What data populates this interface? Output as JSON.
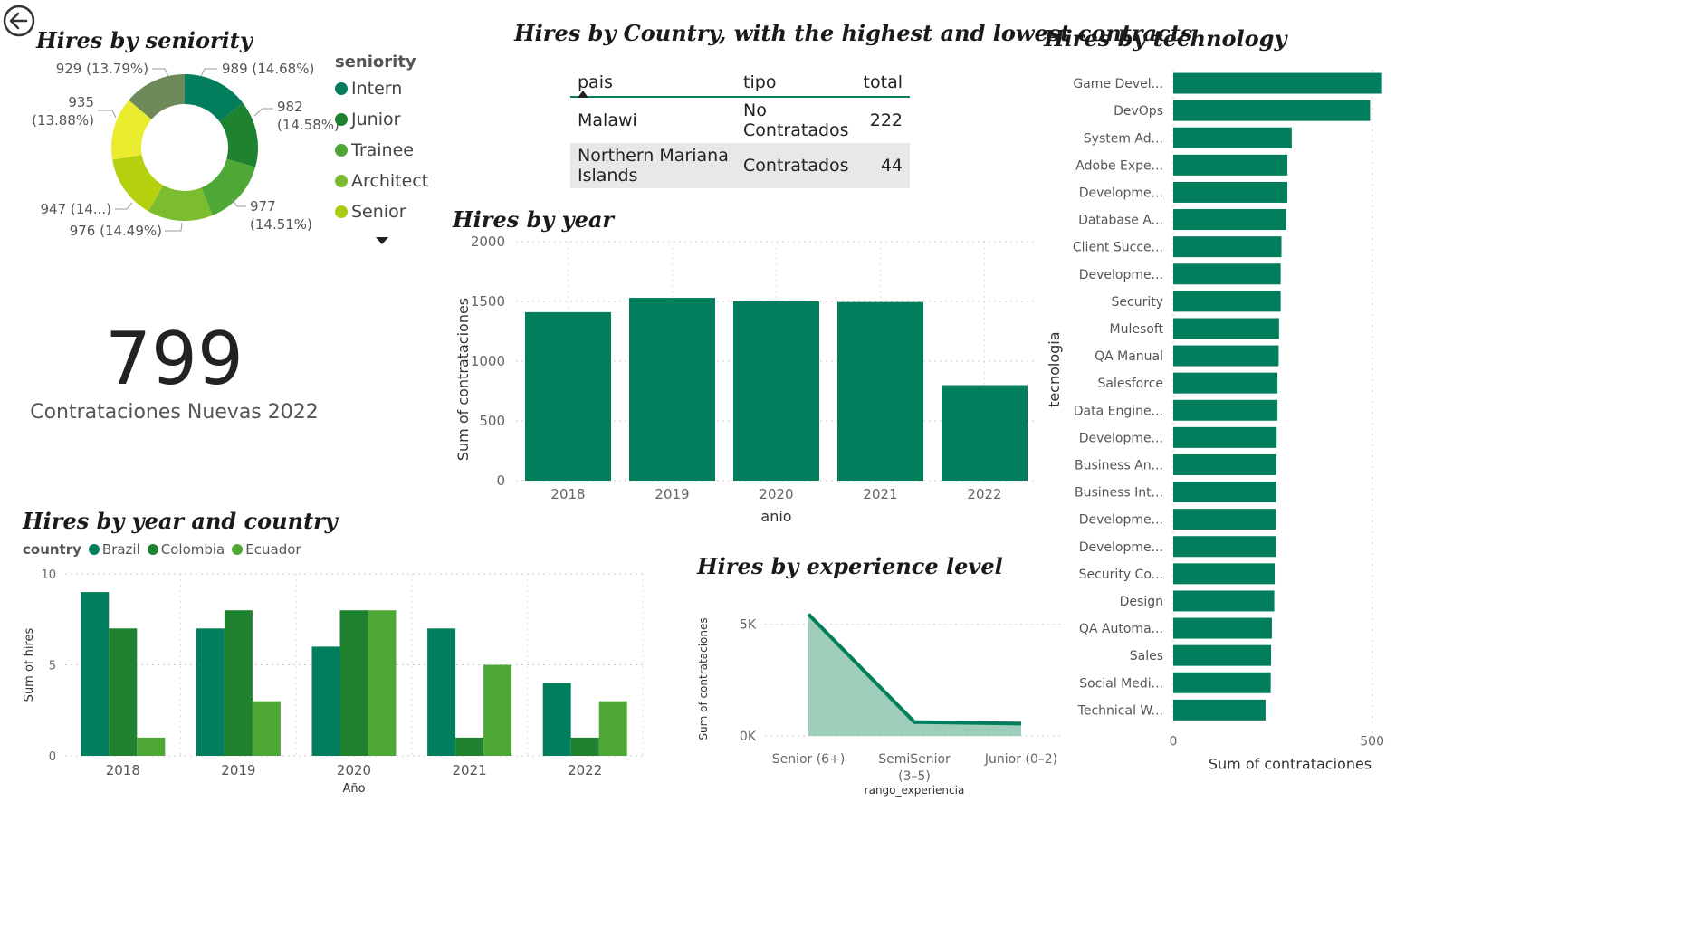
{
  "colors": {
    "primary": "#027e5c",
    "dark": "#1e8230",
    "mid": "#4fa835",
    "light": "#7cbc2f",
    "yellow": "#eaec2f",
    "olive": "#6f8a5a",
    "area": "#9ecdb9"
  },
  "seniority": {
    "title": "Hires by seniority",
    "legend_title": "seniority",
    "legend": [
      {
        "label": "Intern",
        "color": "#027e5c"
      },
      {
        "label": "Junior",
        "color": "#1e8230"
      },
      {
        "label": "Trainee",
        "color": "#4fa835"
      },
      {
        "label": "Architect",
        "color": "#7cbc2f"
      },
      {
        "label": "Senior",
        "color": "#a8cc10"
      }
    ],
    "slices": [
      {
        "value": 989,
        "color": "#027e5c",
        "label": "989 (14.68%)"
      },
      {
        "value": 982,
        "color": "#1e8230",
        "label": "982 (14.58%)"
      },
      {
        "value": 977,
        "color": "#4fa835",
        "label": "977 (14.51%)"
      },
      {
        "value": 976,
        "color": "#7cbc2f",
        "label": "976 (14.49%)"
      },
      {
        "value": 947,
        "color": "#b5d10d",
        "label": "947 (14...)"
      },
      {
        "value": 935,
        "color": "#eaec2f",
        "label": "935 (13.88%)"
      },
      {
        "value": 929,
        "color": "#6f8a5a",
        "label": "929 (13.79%)"
      }
    ],
    "label_lines": {
      "989": "989 (14.68%)",
      "982a": "982",
      "982b": "(14.58%)",
      "977a": "977",
      "977b": "(14.51%)",
      "976": "976 (14.49%)",
      "947": "947 (14...)",
      "935a": "935",
      "935b": "(13.88%)",
      "929": "929 (13.79%)"
    }
  },
  "kpi": {
    "value": "799",
    "label": "Contrataciones Nuevas 2022"
  },
  "country_table": {
    "title": "Hires by Country, with the highest and lowest contracts",
    "headers": {
      "pais": "pais",
      "tipo": "tipo",
      "total": "total"
    },
    "rows": [
      {
        "pais": "Malawi",
        "tipo": "No Contratados",
        "total": "222"
      },
      {
        "pais": "Northern Mariana Islands",
        "tipo": "Contratados",
        "total": "44"
      }
    ]
  },
  "chart_data": [
    {
      "id": "hires_by_year",
      "type": "bar",
      "title": "Hires by year",
      "xlabel": "anio",
      "ylabel": "Sum of contrataciones",
      "categories": [
        "2018",
        "2019",
        "2020",
        "2021",
        "2022"
      ],
      "values": [
        1410,
        1530,
        1500,
        1495,
        799
      ],
      "ylim": [
        0,
        2000
      ],
      "yticks": [
        "0",
        "500",
        "1000",
        "1500",
        "2000"
      ],
      "grid": true
    },
    {
      "id": "hires_by_year_country",
      "type": "bar",
      "title": "Hires by year and country",
      "legend_title": "country",
      "xlabel": "Año",
      "ylabel": "Sum of hires",
      "categories": [
        "2018",
        "2019",
        "2020",
        "2021",
        "2022"
      ],
      "series": [
        {
          "name": "Brazil",
          "color": "#027e5c",
          "values": [
            9,
            7,
            6,
            7,
            4
          ]
        },
        {
          "name": "Colombia",
          "color": "#1e8230",
          "values": [
            7,
            8,
            8,
            1,
            1
          ]
        },
        {
          "name": "Ecuador",
          "color": "#4fa835",
          "values": [
            1,
            3,
            8,
            5,
            3
          ]
        }
      ],
      "ylim": [
        0,
        10
      ],
      "yticks": [
        "0",
        "5",
        "10"
      ],
      "legend_position": "top-left"
    },
    {
      "id": "hires_by_experience",
      "type": "area",
      "title": "Hires by experience level",
      "xlabel": "rango_experiencia",
      "ylabel": "Sum of contrataciones",
      "categories": [
        "Senior (6+)",
        "SemiSenior (3–5)",
        "Junior (0–2)"
      ],
      "category_lines": [
        [
          "Senior (6+)"
        ],
        [
          "SemiSenior",
          "(3–5)"
        ],
        [
          "Junior (0–2)"
        ]
      ],
      "values": [
        5450,
        620,
        550
      ],
      "ylim": [
        0,
        6000
      ],
      "yticks": [
        {
          "v": 0,
          "t": "0K"
        },
        {
          "v": 5000,
          "t": "5K"
        }
      ]
    },
    {
      "id": "hires_by_technology",
      "type": "bar",
      "orientation": "horizontal",
      "title": "Hires by technology",
      "xlabel": "Sum of contrataciones",
      "ylabel": "tecnologia",
      "categories": [
        "Game Devel...",
        "DevOps",
        "System Ad...",
        "Adobe Expe...",
        "Developme...",
        "Database A...",
        "Client Succe...",
        "Developme...",
        "Security",
        "Mulesoft",
        "QA Manual",
        "Salesforce",
        "Data Engine...",
        "Developme...",
        "Business An...",
        "Business Int...",
        "Developme...",
        "Developme...",
        "Security Co...",
        "Design",
        "QA Automa...",
        "Sales",
        "Social Medi...",
        "Technical W..."
      ],
      "values": [
        525,
        495,
        298,
        287,
        287,
        284,
        272,
        270,
        270,
        266,
        265,
        262,
        262,
        260,
        259,
        259,
        258,
        258,
        255,
        254,
        248,
        246,
        245,
        232
      ],
      "xlim": [
        0,
        560
      ],
      "xticks": [
        "0",
        "500"
      ]
    }
  ]
}
